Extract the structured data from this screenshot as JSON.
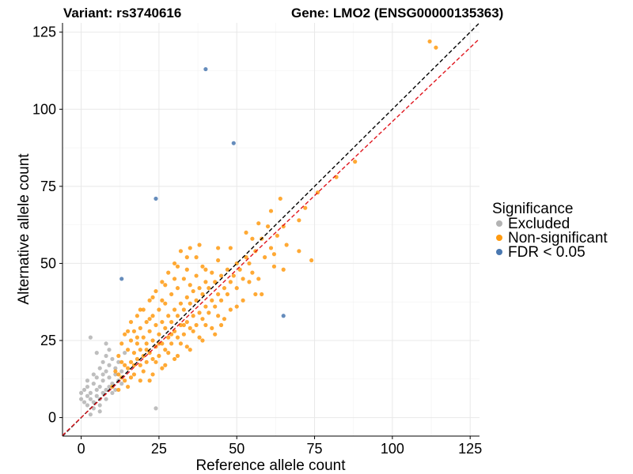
{
  "chart_data": {
    "type": "scatter",
    "title_left": "Variant: rs3740616",
    "title_right": "Gene: LMO2 (ENSG00000135363)",
    "xlabel": "Reference allele count",
    "ylabel": "Alternative allele count",
    "xlim": [
      -6,
      128
    ],
    "ylim": [
      -6,
      128
    ],
    "x_ticks": [
      0,
      25,
      50,
      75,
      100,
      125
    ],
    "y_ticks": [
      0,
      25,
      50,
      75,
      100,
      125
    ],
    "grid": true,
    "legend": {
      "title": "Significance",
      "position": "right",
      "entries": [
        {
          "label": "Excluded",
          "color": "#b3b3b3"
        },
        {
          "label": "Non-significant",
          "color": "#ff9a10"
        },
        {
          "label": "FDR < 0.05",
          "color": "#4a78b0"
        }
      ]
    },
    "reference_lines": [
      {
        "name": "identity",
        "slope": 1,
        "intercept": 0,
        "color": "#000000",
        "style": "dashed"
      },
      {
        "name": "fit",
        "slope": 0.96,
        "intercept": 0,
        "color": "#e0161e",
        "style": "dashed"
      }
    ],
    "series": [
      {
        "name": "Excluded",
        "color": "#b3b3b3",
        "points": [
          [
            0,
            6
          ],
          [
            0,
            8
          ],
          [
            1,
            5
          ],
          [
            1,
            9
          ],
          [
            2,
            4
          ],
          [
            2,
            7
          ],
          [
            2,
            10
          ],
          [
            3,
            6
          ],
          [
            3,
            8
          ],
          [
            3,
            26
          ],
          [
            4,
            3
          ],
          [
            4,
            5
          ],
          [
            4,
            11
          ],
          [
            5,
            7
          ],
          [
            5,
            9
          ],
          [
            5,
            13
          ],
          [
            6,
            4
          ],
          [
            6,
            6
          ],
          [
            6,
            10
          ],
          [
            6,
            16
          ],
          [
            7,
            8
          ],
          [
            7,
            12
          ],
          [
            7,
            14
          ],
          [
            8,
            6
          ],
          [
            8,
            9
          ],
          [
            8,
            15
          ],
          [
            8,
            20
          ],
          [
            9,
            10
          ],
          [
            9,
            13
          ],
          [
            9,
            17
          ],
          [
            10,
            8
          ],
          [
            10,
            11
          ],
          [
            10,
            19
          ],
          [
            11,
            14
          ],
          [
            11,
            16
          ],
          [
            12,
            12
          ],
          [
            12,
            18
          ],
          [
            13,
            15
          ],
          [
            14,
            21
          ],
          [
            9,
            22
          ],
          [
            7,
            18
          ],
          [
            5,
            21
          ],
          [
            24,
            3
          ],
          [
            3,
            1
          ],
          [
            6,
            2
          ],
          [
            4,
            14
          ],
          [
            11,
            9
          ],
          [
            13,
            11
          ],
          [
            2,
            12
          ],
          [
            8,
            24
          ]
        ]
      },
      {
        "name": "Non-significant",
        "color": "#ff9a10",
        "points": [
          [
            10,
            10
          ],
          [
            11,
            15
          ],
          [
            12,
            14
          ],
          [
            12,
            20
          ],
          [
            13,
            13
          ],
          [
            13,
            24
          ],
          [
            14,
            12
          ],
          [
            14,
            17
          ],
          [
            14,
            27
          ],
          [
            15,
            16
          ],
          [
            15,
            22
          ],
          [
            16,
            18
          ],
          [
            16,
            25
          ],
          [
            16,
            31
          ],
          [
            17,
            14
          ],
          [
            17,
            21
          ],
          [
            17,
            28
          ],
          [
            18,
            19
          ],
          [
            18,
            24
          ],
          [
            18,
            33
          ],
          [
            19,
            17
          ],
          [
            19,
            22
          ],
          [
            19,
            29
          ],
          [
            20,
            20
          ],
          [
            20,
            26
          ],
          [
            20,
            35
          ],
          [
            21,
            18
          ],
          [
            21,
            24
          ],
          [
            21,
            31
          ],
          [
            22,
            21
          ],
          [
            22,
            28
          ],
          [
            22,
            38
          ],
          [
            23,
            19
          ],
          [
            23,
            25
          ],
          [
            23,
            33
          ],
          [
            24,
            23
          ],
          [
            24,
            30
          ],
          [
            24,
            41
          ],
          [
            25,
            20
          ],
          [
            25,
            27
          ],
          [
            25,
            35
          ],
          [
            26,
            24
          ],
          [
            26,
            31
          ],
          [
            26,
            44
          ],
          [
            27,
            22
          ],
          [
            27,
            29
          ],
          [
            27,
            37
          ],
          [
            28,
            26
          ],
          [
            28,
            33
          ],
          [
            28,
            47
          ],
          [
            29,
            24
          ],
          [
            29,
            31
          ],
          [
            29,
            40
          ],
          [
            30,
            28
          ],
          [
            30,
            35
          ],
          [
            30,
            50
          ],
          [
            31,
            26
          ],
          [
            31,
            33
          ],
          [
            31,
            42
          ],
          [
            32,
            30
          ],
          [
            32,
            37
          ],
          [
            32,
            54
          ],
          [
            33,
            27
          ],
          [
            33,
            35
          ],
          [
            33,
            45
          ],
          [
            34,
            31
          ],
          [
            34,
            39
          ],
          [
            34,
            48
          ],
          [
            35,
            29
          ],
          [
            35,
            37
          ],
          [
            35,
            43
          ],
          [
            36,
            33
          ],
          [
            36,
            41
          ],
          [
            37,
            30
          ],
          [
            37,
            38
          ],
          [
            37,
            46
          ],
          [
            38,
            34
          ],
          [
            38,
            42
          ],
          [
            39,
            32
          ],
          [
            39,
            40
          ],
          [
            39,
            49
          ],
          [
            40,
            36
          ],
          [
            40,
            44
          ],
          [
            41,
            34
          ],
          [
            41,
            42
          ],
          [
            42,
            38
          ],
          [
            42,
            47
          ],
          [
            43,
            36
          ],
          [
            43,
            44
          ],
          [
            44,
            40
          ],
          [
            44,
            51
          ],
          [
            45,
            38
          ],
          [
            45,
            46
          ],
          [
            46,
            42
          ],
          [
            47,
            40
          ],
          [
            47,
            48
          ],
          [
            48,
            44
          ],
          [
            49,
            46
          ],
          [
            50,
            42
          ],
          [
            50,
            50
          ],
          [
            51,
            48
          ],
          [
            52,
            45
          ],
          [
            53,
            52
          ],
          [
            54,
            50
          ],
          [
            55,
            47
          ],
          [
            56,
            54
          ],
          [
            57,
            45
          ],
          [
            58,
            58
          ],
          [
            59,
            52
          ],
          [
            60,
            62
          ],
          [
            61,
            55
          ],
          [
            62,
            53
          ],
          [
            63,
            59
          ],
          [
            65,
            48
          ],
          [
            65,
            62
          ],
          [
            70,
            64
          ],
          [
            72,
            68
          ],
          [
            74,
            51
          ],
          [
            76,
            73
          ],
          [
            82,
            78
          ],
          [
            88,
            83
          ],
          [
            112,
            122
          ],
          [
            114,
            120
          ],
          [
            12,
            9
          ],
          [
            16,
            13
          ],
          [
            20,
            15
          ],
          [
            24,
            18
          ],
          [
            28,
            21
          ],
          [
            32,
            24
          ],
          [
            36,
            28
          ],
          [
            40,
            30
          ],
          [
            44,
            33
          ],
          [
            48,
            35
          ],
          [
            52,
            38
          ],
          [
            56,
            40
          ],
          [
            22,
            12
          ],
          [
            26,
            16
          ],
          [
            30,
            19
          ],
          [
            34,
            23
          ],
          [
            38,
            26
          ],
          [
            42,
            29
          ],
          [
            46,
            32
          ],
          [
            18,
            26
          ],
          [
            22,
            32
          ],
          [
            26,
            38
          ],
          [
            30,
            45
          ],
          [
            34,
            52
          ],
          [
            38,
            56
          ],
          [
            15,
            28
          ],
          [
            19,
            35
          ],
          [
            23,
            39
          ],
          [
            27,
            43
          ],
          [
            31,
            49
          ],
          [
            35,
            55
          ],
          [
            53,
            60
          ],
          [
            57,
            63
          ],
          [
            61,
            67
          ],
          [
            64,
            71
          ],
          [
            55,
            58
          ],
          [
            48,
            55
          ],
          [
            62,
            49
          ],
          [
            58,
            40
          ],
          [
            66,
            56
          ],
          [
            70,
            54
          ],
          [
            45,
            30
          ],
          [
            50,
            36
          ],
          [
            54,
            44
          ],
          [
            40,
            48
          ],
          [
            44,
            55
          ],
          [
            37,
            52
          ],
          [
            33,
            30
          ],
          [
            29,
            27
          ],
          [
            25,
            24
          ],
          [
            21,
            22
          ],
          [
            17,
            17
          ],
          [
            13,
            18
          ],
          [
            15,
            10
          ],
          [
            19,
            12
          ],
          [
            23,
            14
          ],
          [
            27,
            17
          ],
          [
            31,
            20
          ],
          [
            35,
            22
          ],
          [
            39,
            25
          ],
          [
            43,
            27
          ]
        ]
      },
      {
        "name": "FDR < 0.05",
        "color": "#4a78b0",
        "points": [
          [
            40,
            113
          ],
          [
            49,
            89
          ],
          [
            24,
            71
          ],
          [
            13,
            45
          ],
          [
            65,
            33
          ]
        ]
      }
    ]
  }
}
